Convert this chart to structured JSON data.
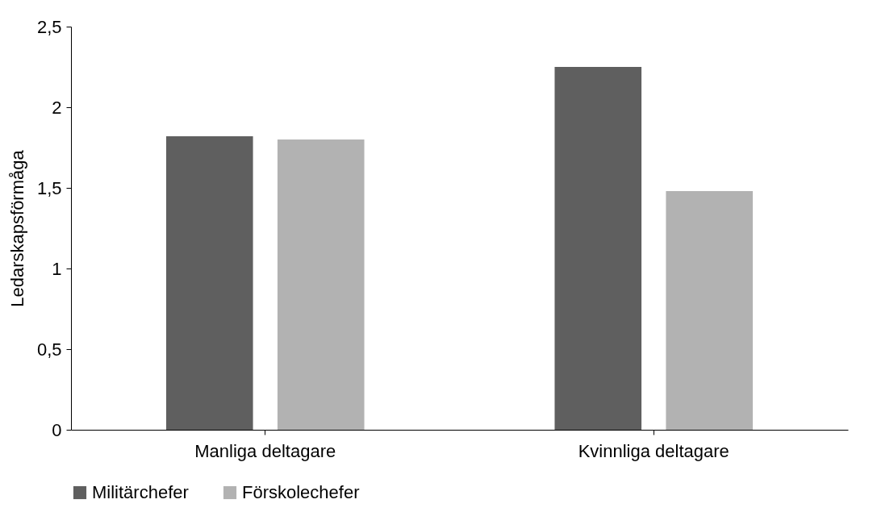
{
  "chart_data": {
    "type": "bar",
    "ylabel": "Ledarskapsförmåga",
    "categories": [
      "Manliga deltagare",
      "Kvinnliga deltagare"
    ],
    "series": [
      {
        "name": "Militärchefer",
        "color": "#5f5f5f",
        "values": [
          1.82,
          2.25
        ]
      },
      {
        "name": "Förskolechefer",
        "color": "#b2b2b2",
        "values": [
          1.8,
          1.48
        ]
      }
    ],
    "ylim": [
      0,
      2.5
    ],
    "yticks": [
      0,
      {
        "value": 0.5,
        "label": "0,5"
      },
      1,
      {
        "value": 1.5,
        "label": "1,5"
      },
      2,
      {
        "value": 2.5,
        "label": "2,5"
      }
    ],
    "grid": false,
    "legend": "bottom"
  }
}
